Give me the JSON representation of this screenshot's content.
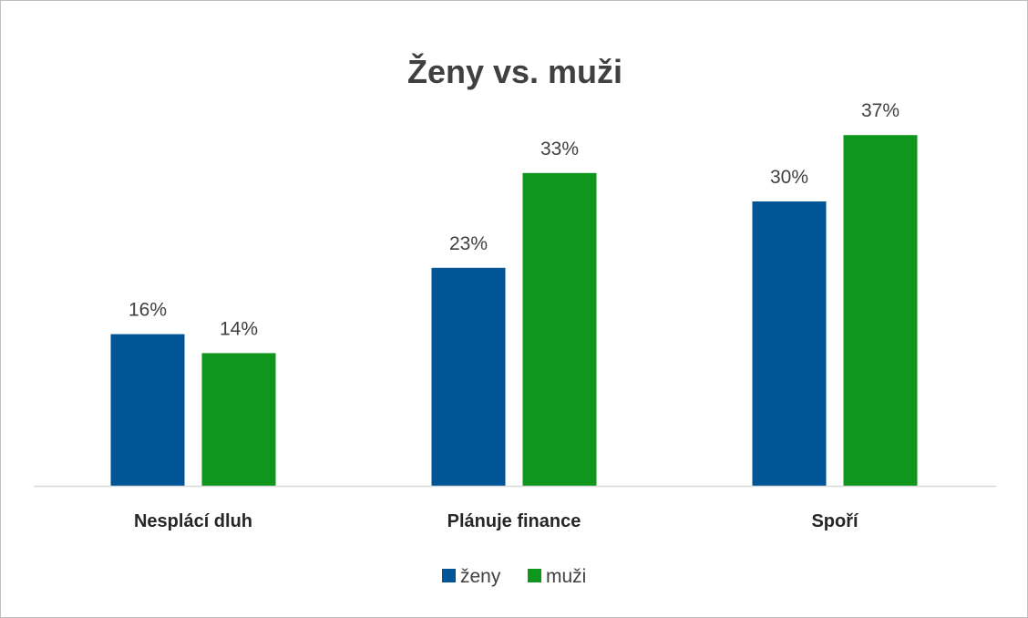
{
  "chart_data": {
    "type": "bar",
    "title": "Ženy vs. muži",
    "categories": [
      "Nesplácí dluh",
      "Plánuje finance",
      "Spoří"
    ],
    "series": [
      {
        "name": "ženy",
        "values": [
          16,
          23,
          30
        ],
        "labels": [
          "16%",
          "23%",
          "30%"
        ],
        "color": "#005596"
      },
      {
        "name": "muži",
        "values": [
          14,
          33,
          37
        ],
        "labels": [
          "14%",
          "33%",
          "37%"
        ],
        "color": "#0f961c"
      }
    ],
    "unit": "%",
    "ylim": [
      0,
      40
    ],
    "grid": false,
    "legend_position": "bottom",
    "axis_line_color": "#d9d9d9"
  }
}
